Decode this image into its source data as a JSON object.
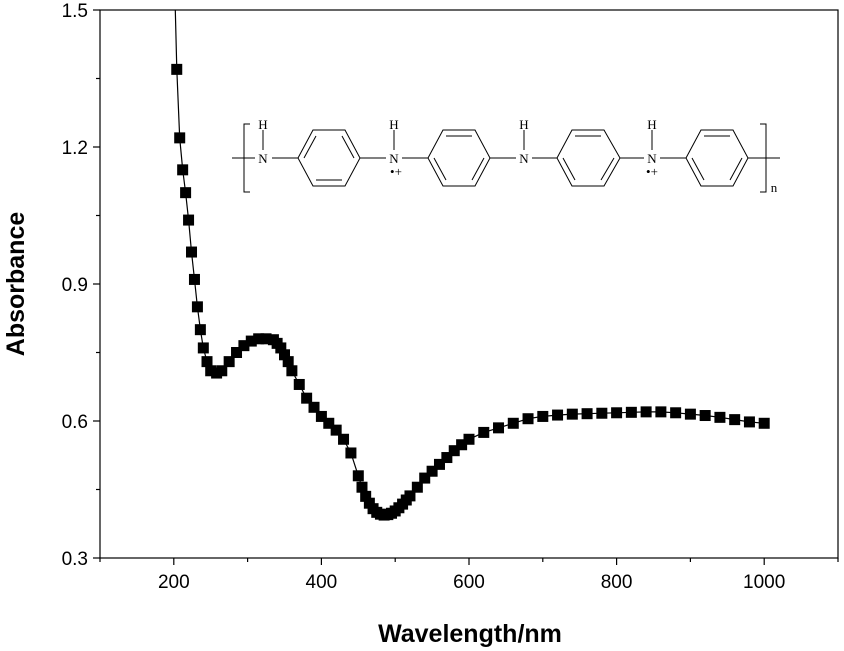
{
  "chart_data": {
    "type": "scatter",
    "title": "",
    "xlabel": "Wavelength/nm",
    "ylabel": "Absorbance",
    "xlim": [
      100,
      1100
    ],
    "ylim": [
      0.3,
      1.5
    ],
    "x_ticks": [
      200,
      400,
      600,
      800,
      1000
    ],
    "y_ticks": [
      0.3,
      0.6,
      0.9,
      1.2,
      1.5
    ],
    "x_tick_labels": [
      "200",
      "400",
      "600",
      "800",
      "1000"
    ],
    "y_tick_labels": [
      "0.3",
      "0.6",
      "0.9",
      "1.2",
      "1.5"
    ],
    "grid": false,
    "legend": "none",
    "marker": "square",
    "color": "#000000",
    "series": [
      {
        "x": [
          202,
          204,
          208,
          212,
          216,
          220,
          224,
          228,
          232,
          236,
          240,
          245,
          250,
          258,
          265,
          275,
          285,
          295,
          305,
          315,
          325,
          335,
          340,
          345,
          350,
          355,
          360,
          370,
          380,
          390,
          400,
          410,
          420,
          430,
          440,
          450,
          455,
          460,
          465,
          470,
          475,
          480,
          485,
          490,
          495,
          500,
          505,
          510,
          515,
          520,
          530,
          540,
          550,
          560,
          570,
          580,
          590,
          600,
          620,
          640,
          660,
          680,
          700,
          720,
          740,
          760,
          780,
          800,
          820,
          840,
          860,
          880,
          900,
          920,
          940,
          960,
          980,
          1000
        ],
        "y": [
          1.5,
          1.37,
          1.22,
          1.15,
          1.1,
          1.04,
          0.97,
          0.91,
          0.85,
          0.8,
          0.76,
          0.73,
          0.71,
          0.705,
          0.71,
          0.73,
          0.75,
          0.765,
          0.775,
          0.78,
          0.78,
          0.778,
          0.77,
          0.76,
          0.745,
          0.73,
          0.71,
          0.68,
          0.65,
          0.63,
          0.61,
          0.595,
          0.58,
          0.56,
          0.53,
          0.48,
          0.455,
          0.435,
          0.42,
          0.408,
          0.4,
          0.396,
          0.394,
          0.395,
          0.398,
          0.403,
          0.41,
          0.418,
          0.427,
          0.436,
          0.455,
          0.475,
          0.49,
          0.505,
          0.52,
          0.535,
          0.548,
          0.56,
          0.575,
          0.585,
          0.595,
          0.605,
          0.61,
          0.613,
          0.615,
          0.616,
          0.617,
          0.618,
          0.619,
          0.62,
          0.62,
          0.618,
          0.615,
          0.612,
          0.608,
          0.603,
          0.598,
          0.595
        ]
      }
    ]
  },
  "structure": {
    "atoms": [
      "N",
      "N",
      "N",
      "N"
    ],
    "hydrogens": [
      "H",
      "H",
      "H",
      "H"
    ],
    "radical_cation_1": "•+",
    "radical_cation_2": "•+",
    "repeat_subscript": "n"
  }
}
